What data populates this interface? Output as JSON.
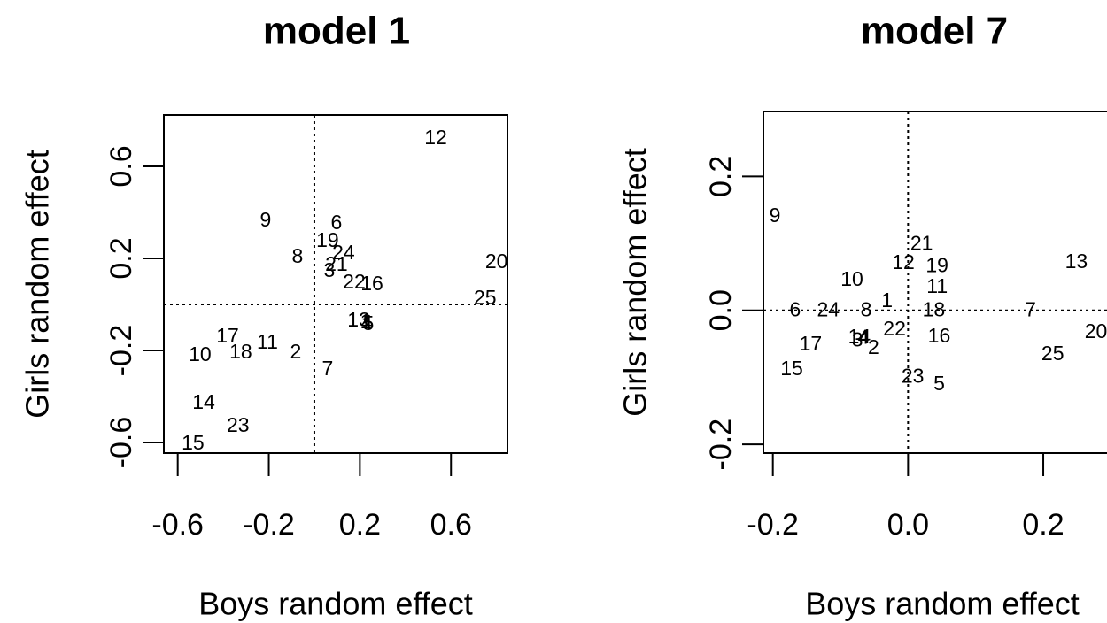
{
  "chart_data": [
    {
      "type": "scatter",
      "title": "model 1",
      "x_label": "Boys random effect",
      "y_label": "Girls random effect",
      "xlim": [
        -0.661,
        0.848
      ],
      "ylim": [
        -0.646,
        0.823
      ],
      "xticks": [
        -0.6,
        -0.2,
        0.2,
        0.6
      ],
      "yticks": [
        -0.6,
        -0.2,
        0.2,
        0.6
      ],
      "hline": 0,
      "vline": 0,
      "color": "#000000",
      "labels": [
        "1",
        "2",
        "3",
        "4",
        "5",
        "6",
        "7",
        "8",
        "9",
        "10",
        "11",
        "12",
        "13",
        "14",
        "15",
        "16",
        "17",
        "18",
        "19",
        "20",
        "21",
        "22",
        "23",
        "24",
        "25"
      ],
      "x": [
        0.226,
        -0.082,
        0.066,
        0.23,
        0.237,
        0.097,
        0.058,
        -0.074,
        -0.214,
        -0.502,
        -0.206,
        0.533,
        0.195,
        -0.486,
        -0.533,
        0.253,
        -0.381,
        -0.323,
        0.058,
        0.8,
        0.097,
        0.175,
        -0.335,
        0.128,
        0.75
      ],
      "y": [
        -0.081,
        -0.212,
        0.142,
        -0.085,
        -0.088,
        0.35,
        -0.285,
        0.204,
        0.362,
        -0.223,
        -0.169,
        0.719,
        -0.073,
        -0.431,
        -0.608,
        0.085,
        -0.142,
        -0.212,
        0.273,
        0.181,
        0.169,
        0.092,
        -0.531,
        0.219,
        0.023
      ]
    },
    {
      "type": "scatter",
      "title": "model 7",
      "x_label": "Boys random effect",
      "y_label": "Girls random effect",
      "xlim": [
        -0.214,
        0.31
      ],
      "ylim": [
        -0.213,
        0.297
      ],
      "xticks": [
        -0.2,
        {
          "value": 0,
          "label": "0.0"
        },
        0.2
      ],
      "yticks": [
        -0.2,
        {
          "value": 0,
          "label": "0.0"
        },
        0.2
      ],
      "hline": 0,
      "vline": 0,
      "color": "#000000",
      "labels": [
        "1",
        "2",
        "3",
        "4",
        "5",
        "6",
        "7",
        "8",
        "9",
        "10",
        "11",
        "12",
        "13",
        "14",
        "15",
        "16",
        "17",
        "18",
        "19",
        "20",
        "21",
        "22",
        "23",
        "24",
        "25"
      ],
      "x": [
        -0.031,
        -0.051,
        -0.075,
        -0.066,
        0.046,
        -0.167,
        0.181,
        -0.062,
        -0.197,
        -0.083,
        0.043,
        -0.007,
        0.249,
        -0.072,
        -0.172,
        0.046,
        -0.144,
        0.038,
        0.043,
        0.278,
        0.02,
        -0.02,
        0.007,
        -0.118,
        0.214
      ],
      "y": [
        0.013,
        -0.057,
        -0.046,
        -0.042,
        -0.111,
        -0.001,
        -0.001,
        -0.001,
        0.14,
        0.045,
        0.034,
        0.07,
        0.071,
        -0.041,
        -0.089,
        -0.04,
        -0.052,
        -0.001,
        0.065,
        -0.033,
        0.098,
        -0.029,
        -0.1,
        -0.001,
        -0.066
      ]
    }
  ]
}
